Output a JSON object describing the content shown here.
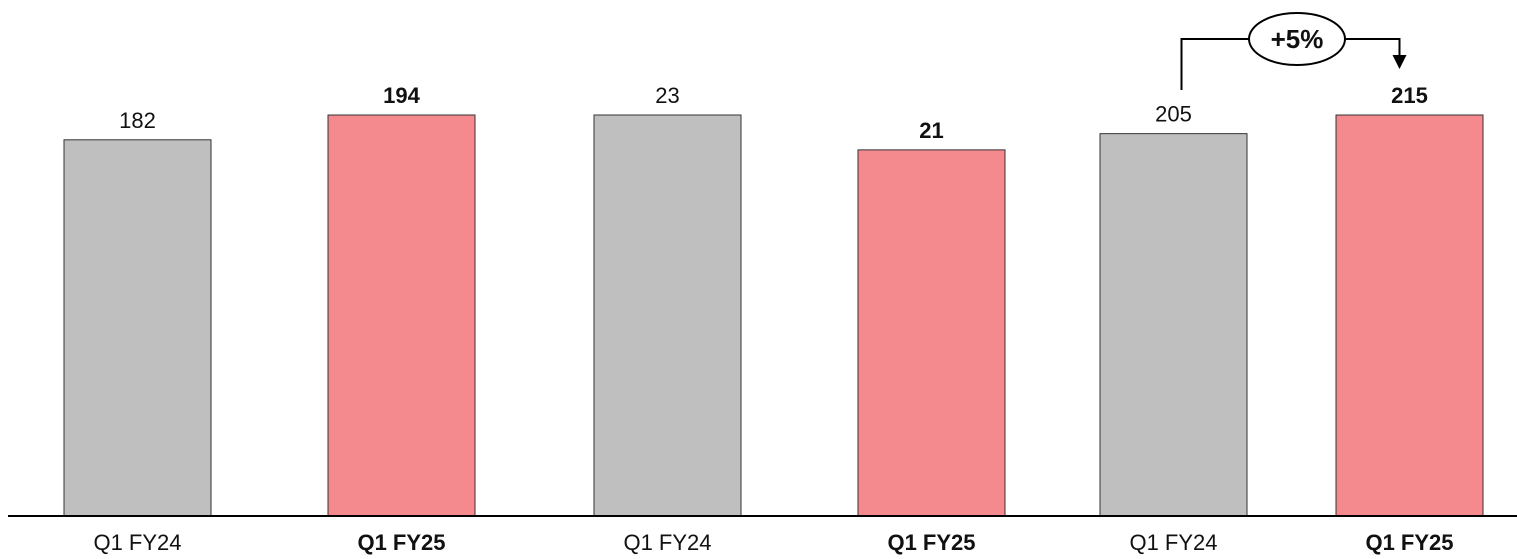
{
  "chart_data": {
    "type": "bar",
    "categories": [
      "Q1 FY24",
      "Q1 FY25",
      "Q1 FY24",
      "Q1 FY25",
      "Q1 FY24",
      "Q1 FY25"
    ],
    "values": [
      182,
      194,
      23,
      21,
      205,
      215
    ],
    "value_labels": [
      "182",
      "194",
      "23",
      "21",
      "205",
      "215"
    ],
    "emphasis": [
      false,
      true,
      false,
      true,
      false,
      true
    ],
    "colors": {
      "prior": "#bfbfbf",
      "current": "#f4898e",
      "bar_outline": "#333333",
      "axis": "#000000"
    },
    "annotation": {
      "text": "+5%",
      "from_index": 4,
      "to_index": 5
    },
    "title": "",
    "xlabel": "",
    "ylabel": ""
  }
}
